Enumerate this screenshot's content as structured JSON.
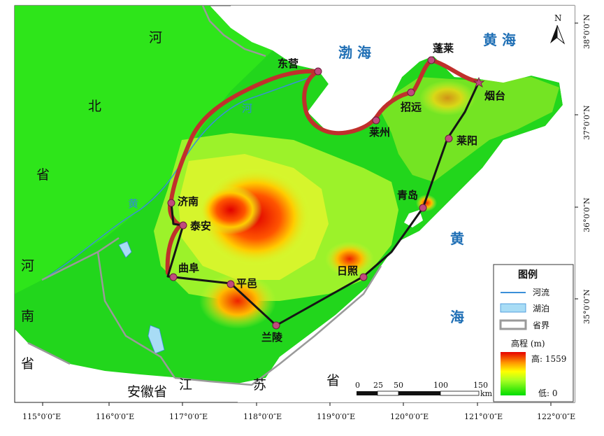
{
  "seas": {
    "bohai": "渤  海",
    "huanghai_top": "黄  海",
    "huanghai_right_1": "黄",
    "huanghai_right_2": "海"
  },
  "provinces": {
    "hebei": [
      "河",
      "北",
      "省"
    ],
    "henan": [
      "河",
      "南",
      "省"
    ],
    "anhui": "安徽省",
    "jiangsu": [
      "江",
      "苏",
      "省"
    ]
  },
  "rivers": {
    "huanghe": [
      "黄",
      "河"
    ]
  },
  "cities": [
    {
      "name": "东营",
      "label": "东营"
    },
    {
      "name": "蓬莱",
      "label": "蓬莱"
    },
    {
      "name": "烟台",
      "label": "烟台"
    },
    {
      "name": "招远",
      "label": "招远"
    },
    {
      "name": "莱州",
      "label": "莱州"
    },
    {
      "name": "莱阳",
      "label": "莱阳"
    },
    {
      "name": "青岛",
      "label": "青岛"
    },
    {
      "name": "日照",
      "label": "日照"
    },
    {
      "name": "兰陵",
      "label": "兰陵"
    },
    {
      "name": "平邑",
      "label": "平邑"
    },
    {
      "name": "曲阜",
      "label": "曲阜"
    },
    {
      "name": "泰安",
      "label": "泰安"
    },
    {
      "name": "济南",
      "label": "济南"
    }
  ],
  "north_arrow": "N",
  "lon_ticks": [
    "115°0′0″E",
    "116°0′0″E",
    "117°0′0″E",
    "118°0′0″E",
    "119°0′0″E",
    "120°0′0″E",
    "121°0′0″E",
    "122°0′0″E"
  ],
  "lat_ticks": [
    "38°0′0″N",
    "37°0′0″N",
    "36°0′0″N",
    "35°0′0″N"
  ],
  "scale_bar": {
    "labels": [
      "0",
      "25",
      "50",
      "100",
      "150"
    ],
    "unit": "km"
  },
  "legend": {
    "title": "图例",
    "river": "河流",
    "lake": "湖泊",
    "boundary": "省界",
    "elevation_title": "高程 (m)",
    "high": "高: 1559",
    "low": "低: 0"
  },
  "colors": {
    "sea": "#ffffff",
    "low_elev": "#33dd22",
    "high_elev": "#e60000",
    "river": "#3a8fd8",
    "route_red": "#c0302c",
    "route_black": "#151515",
    "boundary": "#9a9a9a"
  }
}
